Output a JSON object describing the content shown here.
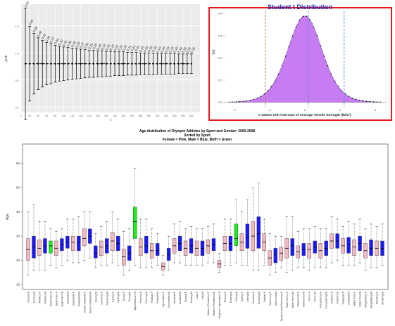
{
  "chart_data": [
    {
      "type": "scatter",
      "panel": "top-left",
      "xlabel": "n",
      "ylabel": "prob",
      "grid": true,
      "background": "#ebebeb",
      "x_ticks": [
        "0",
        "20",
        "40",
        "60",
        "80",
        "100",
        "120",
        "140",
        "160",
        "180",
        "200",
        "220",
        "240",
        "260",
        "280",
        "300",
        "320",
        "340",
        "360",
        "380",
        "400"
      ],
      "y_ticks": [
        "0.0",
        "0.5",
        "1.0",
        "1.5"
      ],
      "xlim": [
        0,
        420
      ],
      "ylim": [
        -0.1,
        1.9
      ],
      "center": 0.8,
      "n": [
        10,
        20,
        30,
        40,
        50,
        60,
        70,
        80,
        90,
        100,
        110,
        120,
        130,
        140,
        150,
        160,
        170,
        180,
        190,
        200,
        210,
        220,
        230,
        240,
        250,
        260,
        270,
        280,
        290,
        300,
        310,
        320,
        330,
        340,
        350,
        360,
        370,
        380,
        390,
        400
      ],
      "half_width": [
        1.03,
        0.69,
        0.56,
        0.48,
        0.43,
        0.39,
        0.37,
        0.34,
        0.32,
        0.31,
        0.3,
        0.29,
        0.28,
        0.27,
        0.26,
        0.25,
        0.25,
        0.24,
        0.24,
        0.23,
        0.23,
        0.22,
        0.22,
        0.22,
        0.21,
        0.21,
        0.21,
        0.2,
        0.2,
        0.2,
        0.2,
        0.19,
        0.19,
        0.19,
        0.19,
        0.19,
        0.18,
        0.18,
        0.18,
        0.18
      ],
      "labels": [
        "1.03",
        "0.69",
        "0.56",
        "0.48",
        "0.43",
        "0.39",
        "0.37",
        "0.34",
        "0.32",
        "0.31",
        "0.30",
        "0.29",
        "0.28",
        "0.27",
        "0.26",
        "0.25",
        "0.25",
        "0.24",
        "0.24",
        "0.23",
        "0.23",
        "0.22",
        "0.22",
        "0.22",
        "0.21",
        "0.21",
        "0.21",
        "0.20",
        "0.20",
        "0.20",
        "0.20",
        "0.19",
        "0.19",
        "0.19",
        "0.19",
        "0.19",
        "0.18",
        "0.18",
        "0.18",
        "0.18"
      ]
    },
    {
      "type": "area",
      "panel": "top-right",
      "title": "Student t Distribution",
      "xlabel": "x values with intercept of Average Tensile Strength (lb/in²)",
      "ylabel": "f(x)",
      "x_ticks": [
        "-4",
        "-2",
        "0",
        "2",
        "4"
      ],
      "y_ticks": [
        "0.0",
        "0.1",
        "0.2",
        "0.3",
        "0.4"
      ],
      "xlim": [
        -4.6,
        4.6
      ],
      "ylim": [
        -0.02,
        0.41
      ],
      "df": 10,
      "vlines": [
        {
          "x": -2.23,
          "color": "#e0704a"
        },
        {
          "x": 0.2,
          "color": "#4a90e2"
        },
        {
          "x": 2.23,
          "color": "#4a90e2"
        }
      ],
      "fill": "#c77cf2",
      "border": "#e41a1c",
      "title_color": "#1f1fb4"
    },
    {
      "type": "box",
      "panel": "bottom",
      "title": "Age distribution of Olympic Athletes by Sport and Gender: 2000-2008",
      "subtitle": "Sorted by Sport",
      "subtitle2": "Female = Pink, Male = Blue, Both = Green",
      "ylabel": "Age",
      "y_ticks": [
        "10",
        "20",
        "30",
        "40",
        "50",
        "60"
      ],
      "ylim": [
        8,
        68
      ],
      "colors": {
        "F": "#f4b8c1",
        "M": "#1a1aff",
        "B": "#1aef1a"
      },
      "categories": [
        "Archery F",
        "Archery M",
        "Athletics F",
        "Athletics M",
        "Badminton B",
        "Badminton F",
        "Badminton M",
        "Baseball M",
        "Basketball F",
        "Basketball M",
        "Beach Volleyball F",
        "Beach Volleyball M",
        "Boxing M",
        "Canoeing F",
        "Canoeing M",
        "Cycling F",
        "Cycling M",
        "Diving F",
        "Diving M",
        "Equestrianism B",
        "Fencing F",
        "Fencing M",
        "Football F",
        "Football M",
        "Gymnastics F",
        "Gymnastics M",
        "Handball F",
        "Handball M",
        "Hockey F",
        "Hockey M",
        "Judo F",
        "Judo M",
        "Modern Pentathlon F",
        "Modern Pentathlon M",
        "Rhythmic Gymnastics F",
        "Rowing F",
        "Rowing M",
        "Sailing B",
        "Sailing F",
        "Sailing M",
        "Shooting F",
        "Shooting M",
        "Softball F",
        "Swimming F",
        "Swimming M",
        "Synchronized Swimming F",
        "Table Tennis F",
        "Table Tennis M",
        "Taekwondo F",
        "Taekwondo M",
        "Tennis F",
        "Tennis M",
        "Trampolining F",
        "Trampolining M",
        "Triathlon F",
        "Triathlon M",
        "Volleyball F",
        "Volleyball M",
        "Water Polo F",
        "Water Polo M",
        "Weightlifting F",
        "Weightlifting M",
        "Wrestling F",
        "Wrestling M"
      ],
      "stats": [
        [
          14,
          20,
          24.5,
          29,
          40
        ],
        [
          16,
          21,
          25.5,
          30,
          43
        ],
        [
          16,
          22,
          25,
          28.5,
          36
        ],
        [
          16,
          23,
          26,
          29,
          36
        ],
        [
          18,
          23,
          26,
          28,
          33
        ],
        [
          17,
          22,
          25,
          28,
          32
        ],
        [
          18,
          24,
          26.5,
          29,
          33
        ],
        [
          20,
          25,
          27.5,
          30,
          37
        ],
        [
          19,
          24,
          27.5,
          30,
          37
        ],
        [
          19,
          24,
          27.5,
          30,
          38
        ],
        [
          20,
          26,
          29,
          33,
          40
        ],
        [
          21,
          27,
          30,
          33,
          40
        ],
        [
          17,
          21,
          23,
          26,
          31
        ],
        [
          18,
          22,
          25.5,
          28,
          34
        ],
        [
          18,
          23,
          26,
          29,
          36
        ],
        [
          19,
          24,
          28,
          31.5,
          40
        ],
        [
          18,
          24,
          27,
          30,
          37
        ],
        [
          14,
          18,
          21.5,
          24.5,
          32
        ],
        [
          16,
          20,
          23,
          26,
          33
        ],
        [
          18,
          29,
          36,
          42,
          58
        ],
        [
          17,
          22,
          25.5,
          29,
          37
        ],
        [
          17,
          23,
          26,
          30,
          37
        ],
        [
          17,
          21,
          24,
          27,
          33
        ],
        [
          18,
          22,
          24,
          27,
          31
        ],
        [
          14,
          16,
          17.5,
          19,
          22
        ],
        [
          16,
          20,
          22.5,
          25,
          30
        ],
        [
          19,
          23,
          26,
          29,
          35
        ],
        [
          19,
          24,
          27,
          30,
          36
        ],
        [
          18,
          22,
          25,
          28,
          33
        ],
        [
          18,
          23,
          26,
          29,
          34
        ],
        [
          18,
          22,
          25,
          28,
          33
        ],
        [
          18,
          22,
          25,
          28,
          33
        ],
        [
          19,
          23,
          26,
          28.5,
          34
        ],
        [
          19,
          24,
          26.5,
          29,
          35
        ],
        [
          15,
          17,
          18.5,
          20,
          23
        ],
        [
          18,
          24,
          27,
          30,
          37
        ],
        [
          18,
          24,
          27,
          30,
          37
        ],
        [
          19,
          26,
          29,
          35,
          45
        ],
        [
          18,
          24,
          27.5,
          31,
          40
        ],
        [
          18,
          25,
          29.5,
          35,
          45
        ],
        [
          16,
          24,
          30,
          36,
          50
        ],
        [
          16,
          25,
          31,
          38,
          52
        ],
        [
          18,
          24,
          27.5,
          31,
          37
        ],
        [
          14,
          18,
          21,
          24,
          31
        ],
        [
          15,
          19,
          22.5,
          25,
          30
        ],
        [
          17,
          20,
          23,
          25.5,
          30
        ],
        [
          15,
          21,
          25,
          29,
          38
        ],
        [
          16,
          22,
          26,
          29,
          38
        ],
        [
          17,
          21,
          23.5,
          26,
          32
        ],
        [
          17,
          22,
          24.5,
          27,
          33
        ],
        [
          16,
          21,
          24.5,
          27,
          33
        ],
        [
          17,
          23,
          25.5,
          28,
          34
        ],
        [
          17,
          21,
          24,
          27,
          33
        ],
        [
          17,
          22,
          25,
          28,
          33
        ],
        [
          19,
          25,
          28,
          31,
          38
        ],
        [
          20,
          25,
          28,
          31,
          37
        ],
        [
          18,
          23,
          26,
          29,
          34
        ],
        [
          18,
          23,
          26.5,
          29.5,
          36
        ],
        [
          18,
          22,
          25.5,
          28.5,
          35
        ],
        [
          19,
          24,
          27,
          30,
          37
        ],
        [
          16,
          21,
          24,
          27,
          33
        ],
        [
          17,
          22,
          25,
          28.5,
          35
        ],
        [
          17,
          22,
          25,
          28,
          34
        ],
        [
          18,
          22,
          25,
          28,
          35
        ]
      ]
    }
  ]
}
